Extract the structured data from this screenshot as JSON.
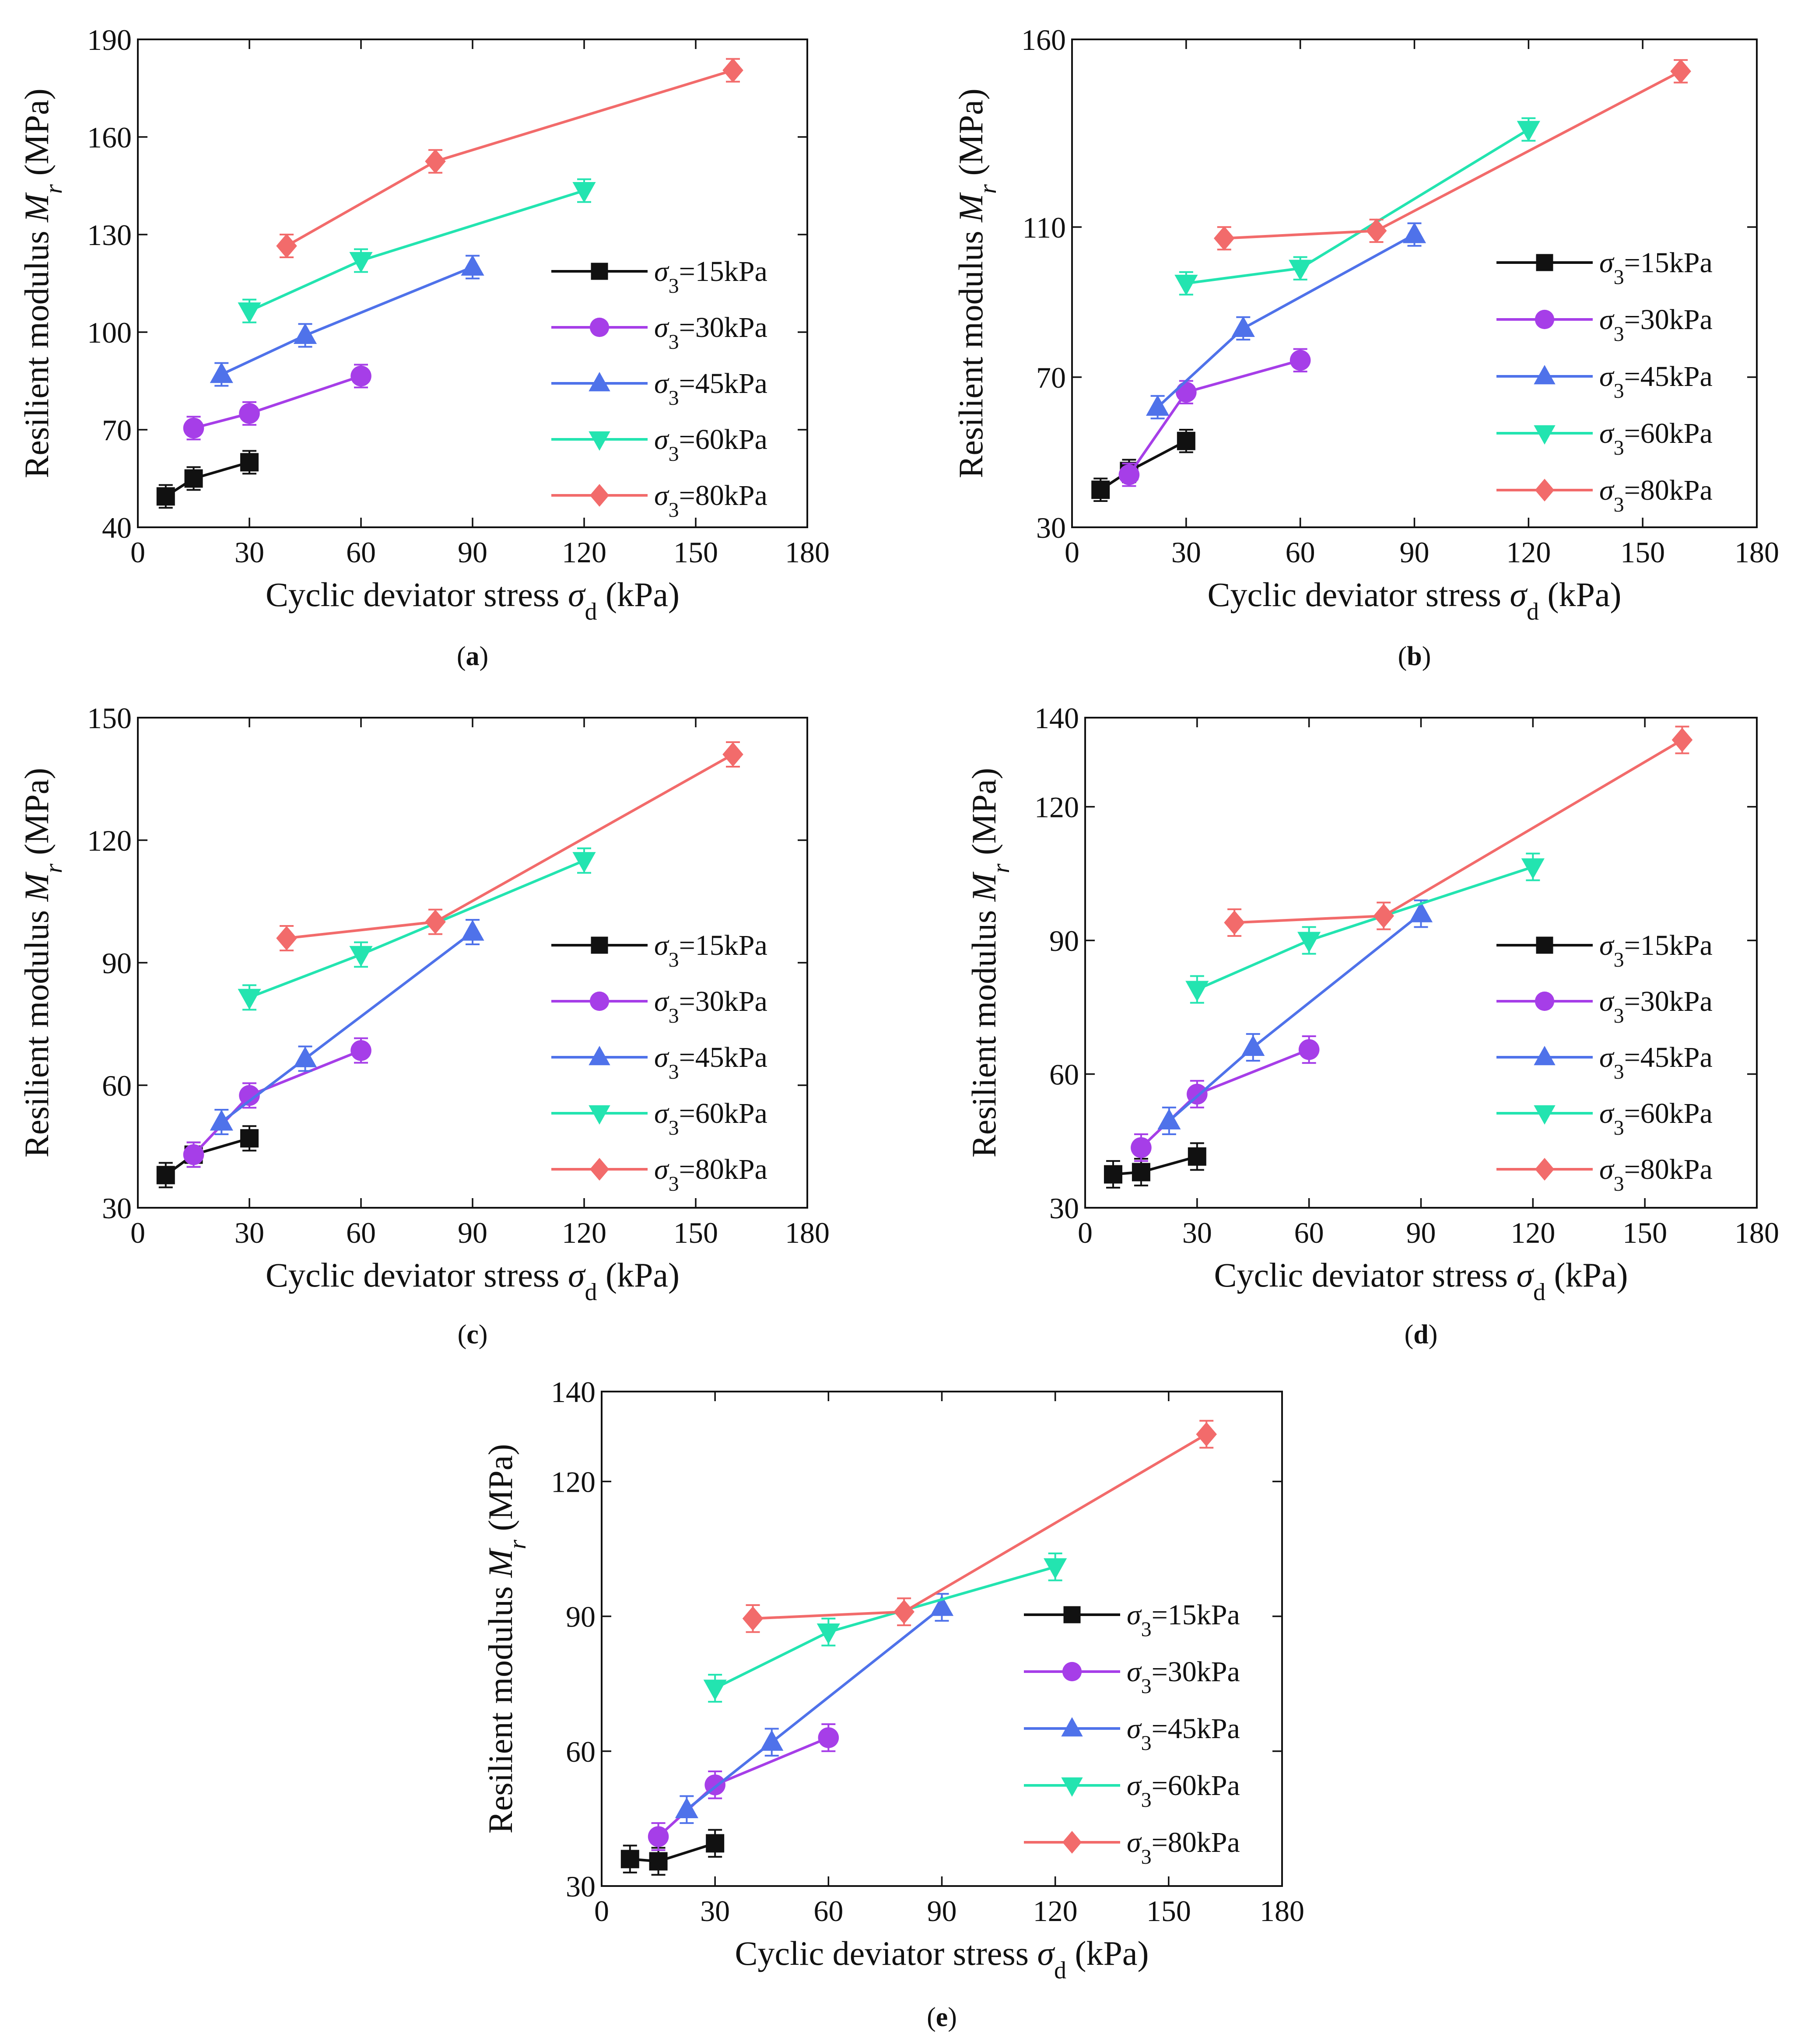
{
  "figure": {
    "panels": [
      {
        "caption": "(a)",
        "chart_data": {
          "type": "line",
          "xlabel": "Cyclic deviator stress σd (kPa)",
          "ylabel": "Resilient modulus Mr (MPa)",
          "xlim": [
            0,
            180
          ],
          "ylim": [
            40,
            190
          ],
          "xticks": [
            0,
            30,
            60,
            90,
            120,
            150,
            180
          ],
          "yticks": [
            40,
            70,
            100,
            130,
            160,
            190
          ],
          "grid": false,
          "legend_position": "right-center",
          "series": [
            {
              "name": "σ3=15kPa",
              "color": "#111111",
              "marker": "square",
              "x": [
                7.5,
                15,
                30
              ],
              "y": [
                49.5,
                55,
                60
              ],
              "err": [
                3.5,
                3.5,
                3.5
              ]
            },
            {
              "name": "σ3=30kPa",
              "color": "#a63ee8",
              "marker": "circle",
              "x": [
                15,
                30,
                60
              ],
              "y": [
                70.5,
                75,
                86.5
              ],
              "err": [
                3.5,
                3.5,
                3.5
              ]
            },
            {
              "name": "σ3=45kPa",
              "color": "#4f72ea",
              "marker": "triangle-up",
              "x": [
                22.5,
                45,
                90
              ],
              "y": [
                87,
                99,
                120
              ],
              "err": [
                3.5,
                3.5,
                3.5
              ]
            },
            {
              "name": "σ3=60kPa",
              "color": "#23e4b0",
              "marker": "triangle-down",
              "x": [
                30,
                60,
                120
              ],
              "y": [
                106.5,
                122,
                143.5
              ],
              "err": [
                3.5,
                3.5,
                3.5
              ]
            },
            {
              "name": "σ3=80kPa",
              "color": "#f26b6b",
              "marker": "diamond",
              "x": [
                40,
                80,
                160
              ],
              "y": [
                126.5,
                152.5,
                180.5
              ],
              "err": [
                3.5,
                3.5,
                3.5
              ]
            }
          ]
        }
      },
      {
        "caption": "(b)",
        "chart_data": {
          "type": "line",
          "xlabel": "Cyclic deviator stress σd (kPa)",
          "ylabel": "Resilient modulus Mr (MPa)",
          "xlim": [
            0,
            180
          ],
          "ylim": [
            30,
            160
          ],
          "xticks": [
            0,
            30,
            60,
            90,
            120,
            150,
            180
          ],
          "yticks": [
            30,
            70,
            110,
            160
          ],
          "grid": false,
          "legend_position": "right-center",
          "series": [
            {
              "name": "σ3=15kPa",
              "color": "#111111",
              "marker": "square",
              "x": [
                7.5,
                15,
                30
              ],
              "y": [
                40,
                45,
                53
              ],
              "err": [
                3,
                3,
                3
              ]
            },
            {
              "name": "σ3=30kPa",
              "color": "#a63ee8",
              "marker": "circle",
              "x": [
                15,
                30,
                60
              ],
              "y": [
                44,
                66,
                74.5
              ],
              "err": [
                3,
                3,
                3
              ]
            },
            {
              "name": "σ3=45kPa",
              "color": "#4f72ea",
              "marker": "triangle-up",
              "x": [
                22.5,
                45,
                90
              ],
              "y": [
                62,
                83,
                108
              ],
              "err": [
                3,
                3,
                3
              ]
            },
            {
              "name": "σ3=60kPa",
              "color": "#23e4b0",
              "marker": "triangle-down",
              "x": [
                30,
                60,
                120
              ],
              "y": [
                95,
                99,
                136
              ],
              "err": [
                3,
                3,
                3
              ]
            },
            {
              "name": "σ3=80kPa",
              "color": "#f26b6b",
              "marker": "diamond",
              "x": [
                40,
                80,
                160
              ],
              "y": [
                107,
                109,
                151.5
              ],
              "err": [
                3,
                3,
                3
              ]
            }
          ]
        }
      },
      {
        "caption": "(c)",
        "chart_data": {
          "type": "line",
          "xlabel": "Cyclic deviator stress σd (kPa)",
          "ylabel": "Resilient modulus Mr (MPa)",
          "xlim": [
            0,
            180
          ],
          "ylim": [
            30,
            150
          ],
          "xticks": [
            0,
            30,
            60,
            90,
            120,
            150,
            180
          ],
          "yticks": [
            30,
            60,
            90,
            120,
            150
          ],
          "grid": false,
          "legend_position": "right-center",
          "series": [
            {
              "name": "σ3=15kPa",
              "color": "#111111",
              "marker": "square",
              "x": [
                7.5,
                15,
                30
              ],
              "y": [
                38,
                43,
                47
              ],
              "err": [
                3,
                3,
                3
              ]
            },
            {
              "name": "σ3=30kPa",
              "color": "#a63ee8",
              "marker": "circle",
              "x": [
                15,
                30,
                60
              ],
              "y": [
                43,
                57.5,
                68.5
              ],
              "err": [
                3,
                3,
                3
              ]
            },
            {
              "name": "σ3=45kPa",
              "color": "#4f72ea",
              "marker": "triangle-up",
              "x": [
                22.5,
                45,
                90
              ],
              "y": [
                51,
                66.5,
                97.5
              ],
              "err": [
                3,
                3,
                3
              ]
            },
            {
              "name": "σ3=60kPa",
              "color": "#23e4b0",
              "marker": "triangle-down",
              "x": [
                30,
                60,
                120
              ],
              "y": [
                81.5,
                92,
                115
              ],
              "err": [
                3,
                3,
                3
              ]
            },
            {
              "name": "σ3=80kPa",
              "color": "#f26b6b",
              "marker": "diamond",
              "x": [
                40,
                80,
                160
              ],
              "y": [
                96,
                100,
                141
              ],
              "err": [
                3,
                3,
                3
              ]
            }
          ]
        }
      },
      {
        "caption": "(d)",
        "chart_data": {
          "type": "line",
          "xlabel": "Cyclic deviator stress σd (kPa)",
          "ylabel": "Resilient modulus Mr (MPa)",
          "xlim": [
            0,
            180
          ],
          "ylim": [
            30,
            140
          ],
          "xticks": [
            0,
            30,
            60,
            90,
            120,
            150,
            180
          ],
          "yticks": [
            30,
            60,
            90,
            120,
            140
          ],
          "grid": false,
          "legend_position": "right-center",
          "series": [
            {
              "name": "σ3=15kPa",
              "color": "#111111",
              "marker": "square",
              "x": [
                7.5,
                15,
                30
              ],
              "y": [
                37.5,
                38,
                41.5
              ],
              "err": [
                3,
                3,
                3
              ]
            },
            {
              "name": "σ3=30kPa",
              "color": "#a63ee8",
              "marker": "circle",
              "x": [
                15,
                30,
                60
              ],
              "y": [
                43.5,
                55.5,
                65.5
              ],
              "err": [
                3,
                3,
                3
              ]
            },
            {
              "name": "σ3=45kPa",
              "color": "#4f72ea",
              "marker": "triangle-up",
              "x": [
                22.5,
                45,
                90
              ],
              "y": [
                49.5,
                66,
                96
              ],
              "err": [
                3,
                3,
                3
              ]
            },
            {
              "name": "σ3=60kPa",
              "color": "#23e4b0",
              "marker": "triangle-down",
              "x": [
                30,
                60,
                120
              ],
              "y": [
                79,
                90,
                106.5
              ],
              "err": [
                3,
                3,
                3
              ]
            },
            {
              "name": "σ3=80kPa",
              "color": "#f26b6b",
              "marker": "diamond",
              "x": [
                40,
                80,
                160
              ],
              "y": [
                94,
                95.5,
                135
              ],
              "err": [
                3,
                3,
                3
              ]
            }
          ]
        }
      },
      {
        "caption": "(e)",
        "chart_data": {
          "type": "line",
          "xlabel": "Cyclic deviator stress σd (kPa)",
          "ylabel": "Resilient modulus Mr (MPa)",
          "xlim": [
            0,
            180
          ],
          "ylim": [
            30,
            140
          ],
          "xticks": [
            0,
            30,
            60,
            90,
            120,
            150,
            180
          ],
          "yticks": [
            30,
            60,
            90,
            120,
            140
          ],
          "grid": false,
          "legend_position": "right-center",
          "series": [
            {
              "name": "σ3=15kPa",
              "color": "#111111",
              "marker": "square",
              "x": [
                7.5,
                15,
                30
              ],
              "y": [
                36,
                35.5,
                39.5
              ],
              "err": [
                3,
                3,
                3
              ]
            },
            {
              "name": "σ3=30kPa",
              "color": "#a63ee8",
              "marker": "circle",
              "x": [
                15,
                30,
                60
              ],
              "y": [
                41,
                52.5,
                63
              ],
              "err": [
                3,
                3,
                3
              ]
            },
            {
              "name": "σ3=45kPa",
              "color": "#4f72ea",
              "marker": "triangle-up",
              "x": [
                22.5,
                45,
                90
              ],
              "y": [
                47,
                62,
                92
              ],
              "err": [
                3,
                3,
                3
              ]
            },
            {
              "name": "σ3=60kPa",
              "color": "#23e4b0",
              "marker": "triangle-down",
              "x": [
                30,
                60,
                120
              ],
              "y": [
                74,
                86.5,
                101
              ],
              "err": [
                3,
                3,
                3
              ]
            },
            {
              "name": "σ3=80kPa",
              "color": "#f26b6b",
              "marker": "diamond",
              "x": [
                40,
                80,
                160
              ],
              "y": [
                89.5,
                91,
                130.5
              ],
              "err": [
                3,
                3,
                3
              ]
            }
          ]
        }
      }
    ]
  }
}
